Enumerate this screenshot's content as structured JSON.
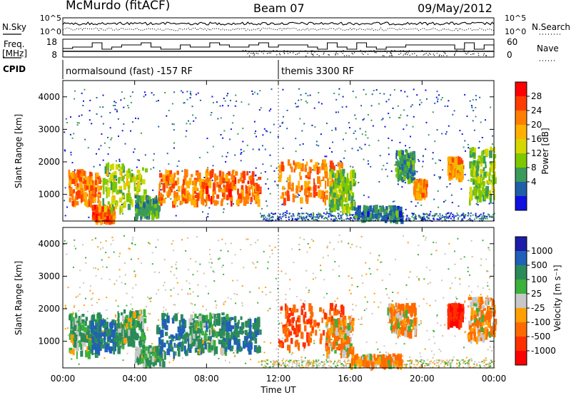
{
  "header": {
    "station": "McMurdo (fitACF)",
    "beam": "Beam 07",
    "date": "09/May/2012"
  },
  "top_panels": {
    "nsky_label": "N.Sky",
    "nsearch_label": "N.Search",
    "freq_label_1": "Freq.",
    "freq_label_2": "[MHz]",
    "nave_label": "Nave",
    "cpid_label": "CPID",
    "noise_ticks_left": [
      "10^5",
      "10^0"
    ],
    "noise_ticks_right": [
      "10^5",
      "10^0"
    ],
    "freq_ticks": [
      "18",
      "8"
    ],
    "nave_ticks": [
      "60",
      "0"
    ]
  },
  "cpid": {
    "segments": [
      {
        "start_hour": 0,
        "label": "normalsound (fast) -157 RF"
      },
      {
        "start_hour": 12,
        "label": "themis 3300 RF"
      }
    ]
  },
  "power_colorbar": {
    "label": "Power [dB]",
    "ticks": [
      "28",
      "24",
      "20",
      "16",
      "12",
      "8",
      "4"
    ],
    "colors": [
      "#ff0000",
      "#ff3c00",
      "#ff7f00",
      "#ffb000",
      "#d7d700",
      "#7fc800",
      "#3a9a5a",
      "#1f5fa8",
      "#1010e0"
    ]
  },
  "velocity_colorbar": {
    "label": "Velocity [m s⁻¹]",
    "ticks": [
      "1000",
      "500",
      "100",
      "25",
      "-25",
      "-100",
      "-500",
      "-1000"
    ],
    "colors": [
      "#1c1ca8",
      "#2060b8",
      "#2a8a5a",
      "#3cb03c",
      "#c8c8c8",
      "#ffa000",
      "#ff6a00",
      "#ff3000",
      "#ff0000"
    ]
  },
  "axes": {
    "y_label": "Slant Range [km]",
    "y_ticks": [
      "1000",
      "2000",
      "3000",
      "4000"
    ],
    "x_ticks": [
      "00:00",
      "04:00",
      "08:00",
      "12:00",
      "16:00",
      "20:00",
      "00:00"
    ],
    "x_label": "Time UT"
  },
  "chart_data": [
    {
      "type": "heatmap",
      "title": "",
      "xlabel": "",
      "ylabel": "Slant Range [km]",
      "x_range_hours": [
        0,
        24
      ],
      "ylim": [
        180,
        4500
      ],
      "quantity": "Power [dB]",
      "blobs": [
        {
          "t0": 0.3,
          "t1": 2.0,
          "r0": 700,
          "r1": 1700,
          "value": 24
        },
        {
          "t0": 1.6,
          "t1": 2.8,
          "r0": 200,
          "r1": 600,
          "value": 26
        },
        {
          "t0": 2.2,
          "t1": 4.6,
          "r0": 500,
          "r1": 1900,
          "value": 14
        },
        {
          "t0": 4.0,
          "t1": 5.3,
          "r0": 300,
          "r1": 900,
          "value": 8
        },
        {
          "t0": 5.3,
          "t1": 8.0,
          "r0": 700,
          "r1": 1700,
          "value": 24
        },
        {
          "t0": 7.9,
          "t1": 10.9,
          "r0": 700,
          "r1": 1700,
          "value": 26
        },
        {
          "t0": 12.0,
          "t1": 15.6,
          "r0": 800,
          "r1": 2000,
          "value": 24
        },
        {
          "t0": 14.8,
          "t1": 16.2,
          "r0": 500,
          "r1": 1700,
          "value": 12
        },
        {
          "t0": 16.2,
          "t1": 18.8,
          "r0": 250,
          "r1": 600,
          "value": 6
        },
        {
          "t0": 18.5,
          "t1": 19.5,
          "r0": 1400,
          "r1": 2300,
          "value": 8
        },
        {
          "t0": 19.5,
          "t1": 20.2,
          "r0": 900,
          "r1": 1400,
          "value": 22
        },
        {
          "t0": 21.4,
          "t1": 22.2,
          "r0": 1500,
          "r1": 2100,
          "value": 22
        },
        {
          "t0": 22.6,
          "t1": 24.0,
          "r0": 800,
          "r1": 2400,
          "value": 12
        }
      ]
    },
    {
      "type": "heatmap",
      "title": "",
      "xlabel": "Time UT",
      "ylabel": "Slant Range [km]",
      "x_range_hours": [
        0,
        24
      ],
      "ylim": [
        180,
        4500
      ],
      "quantity": "Velocity [m s⁻¹]",
      "blobs": [
        {
          "t0": 0.3,
          "t1": 2.2,
          "r0": 600,
          "r1": 1800,
          "value": 100
        },
        {
          "t0": 1.5,
          "t1": 3.2,
          "r0": 700,
          "r1": 1600,
          "value": 500
        },
        {
          "t0": 3.0,
          "t1": 4.5,
          "r0": 900,
          "r1": 1900,
          "value": 100
        },
        {
          "t0": 4.0,
          "t1": 5.6,
          "r0": 300,
          "r1": 800,
          "value": 100
        },
        {
          "t0": 5.2,
          "t1": 8.2,
          "r0": 600,
          "r1": 1800,
          "value": 500
        },
        {
          "t0": 7.0,
          "t1": 9.2,
          "r0": 700,
          "r1": 1800,
          "value": 100
        },
        {
          "t0": 8.8,
          "t1": 11.0,
          "r0": 700,
          "r1": 1700,
          "value": 500
        },
        {
          "t0": 12.0,
          "t1": 15.6,
          "r0": 800,
          "r1": 2100,
          "value": -500
        },
        {
          "t0": 14.6,
          "t1": 16.1,
          "r0": 600,
          "r1": 1700,
          "value": -100
        },
        {
          "t0": 16.0,
          "t1": 18.8,
          "r0": 250,
          "r1": 550,
          "value": -100
        },
        {
          "t0": 18.0,
          "t1": 19.6,
          "r0": 1200,
          "r1": 2100,
          "value": -100
        },
        {
          "t0": 21.4,
          "t1": 22.2,
          "r0": 1500,
          "r1": 2100,
          "value": -1000
        },
        {
          "t0": 22.5,
          "t1": 24.0,
          "r0": 1000,
          "r1": 2300,
          "value": -100
        }
      ]
    }
  ]
}
